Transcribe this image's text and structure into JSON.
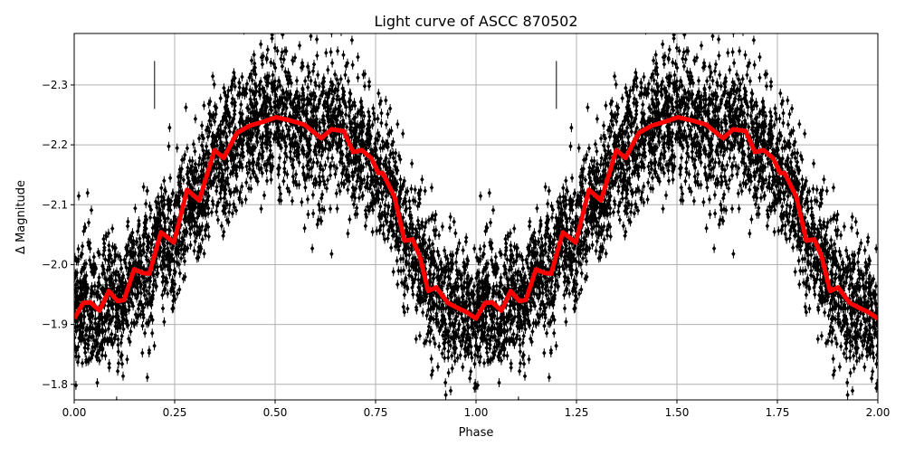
{
  "chart_data": {
    "type": "scatter",
    "title": "Light curve of ASCC 870502",
    "xlabel": "Phase",
    "ylabel": "Δ Magnitude",
    "xlim": [
      0,
      2
    ],
    "ylim": [
      -1.774,
      -2.386
    ],
    "y_inverted": true,
    "grid": true,
    "xticks": [
      "0.00",
      "0.25",
      "0.50",
      "0.75",
      "1.00",
      "1.25",
      "1.50",
      "1.75",
      "2.00"
    ],
    "yticks": [
      "−2.3",
      "−2.2",
      "−2.1",
      "−2.0",
      "−1.9",
      "−1.8"
    ],
    "colors": {
      "points": "#000000",
      "binned_curve": "#ff0000",
      "grid": "#b0b0b0"
    },
    "series": [
      {
        "style": "black points with error bars",
        "period_repeated": true
      },
      {
        "style": "red thick line (binned mean), one period repeated over phase 0–2",
        "phase": [
          0.0,
          0.0225,
          0.04,
          0.063,
          0.086,
          0.108,
          0.124,
          0.149,
          0.171,
          0.187,
          0.216,
          0.248,
          0.281,
          0.311,
          0.349,
          0.372,
          0.405,
          0.437,
          0.468,
          0.502,
          0.536,
          0.572,
          0.615,
          0.64,
          0.671,
          0.694,
          0.716,
          0.739,
          0.757,
          0.768,
          0.797,
          0.822,
          0.842,
          0.86,
          0.881,
          0.901,
          0.93,
          0.953,
          0.975,
          1.0
        ],
        "magnitude": [
          -1.91,
          -1.936,
          -1.937,
          -1.923,
          -1.956,
          -1.939,
          -1.941,
          -1.992,
          -1.986,
          -1.985,
          -2.054,
          -2.037,
          -2.125,
          -2.107,
          -2.191,
          -2.178,
          -2.22,
          -2.232,
          -2.238,
          -2.246,
          -2.241,
          -2.234,
          -2.211,
          -2.226,
          -2.223,
          -2.188,
          -2.191,
          -2.178,
          -2.153,
          -2.153,
          -2.113,
          -2.04,
          -2.042,
          -2.014,
          -1.956,
          -1.962,
          -1.936,
          -1.928,
          -1.921,
          -1.91
        ]
      }
    ]
  }
}
